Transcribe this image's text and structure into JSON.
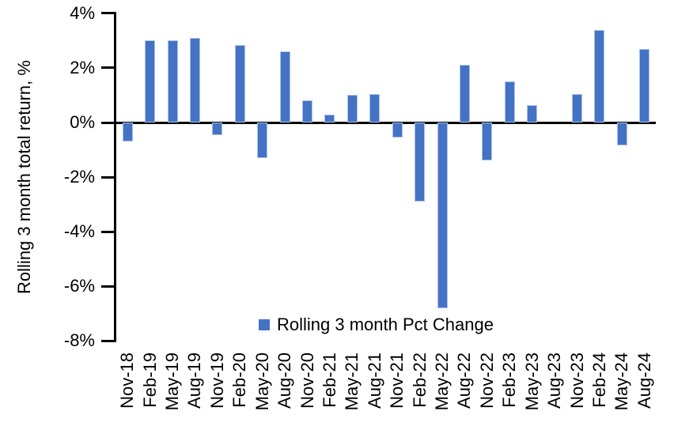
{
  "chart_data": {
    "type": "bar",
    "title": "",
    "xlabel": "",
    "ylabel": "Rolling 3 month total return, %",
    "ylim": [
      -8,
      4
    ],
    "ytick_values": [
      4,
      2,
      0,
      -2,
      -4,
      -6,
      -8
    ],
    "ytick_labels": [
      "4%",
      "2%",
      "0%",
      "-2%",
      "-4%",
      "-6%",
      "-8%"
    ],
    "grid": false,
    "legend_position": "bottom-inside",
    "categories": [
      "Nov-18",
      "Feb-19",
      "May-19",
      "Aug-19",
      "Nov-19",
      "Feb-20",
      "May-20",
      "Aug-20",
      "Nov-20",
      "Feb-21",
      "May-21",
      "Aug-21",
      "Nov-21",
      "Feb-22",
      "May-22",
      "Aug-22",
      "Nov-22",
      "Feb-23",
      "May-23",
      "Aug-23",
      "Nov-23",
      "Feb-24",
      "May-24",
      "Aug-24"
    ],
    "series": [
      {
        "name": "Rolling 3 month Pct Change",
        "values": [
          -0.7,
          3.0,
          3.0,
          3.1,
          -0.45,
          2.85,
          -1.3,
          2.6,
          0.8,
          0.3,
          1.0,
          1.05,
          -0.55,
          -2.9,
          -6.8,
          2.1,
          -1.4,
          1.5,
          0.65,
          0.0,
          1.05,
          3.4,
          -0.85,
          2.7
        ]
      }
    ],
    "colors": {
      "bar_fill": "#4472C4",
      "bar_border": "#A9C2E8",
      "axis": "#000000",
      "text": "#000000"
    }
  },
  "legend": {
    "label": "Rolling 3 month Pct Change",
    "swatch_color": "#4472C4"
  },
  "y_axis": {
    "title": "Rolling 3 month total return, %"
  }
}
